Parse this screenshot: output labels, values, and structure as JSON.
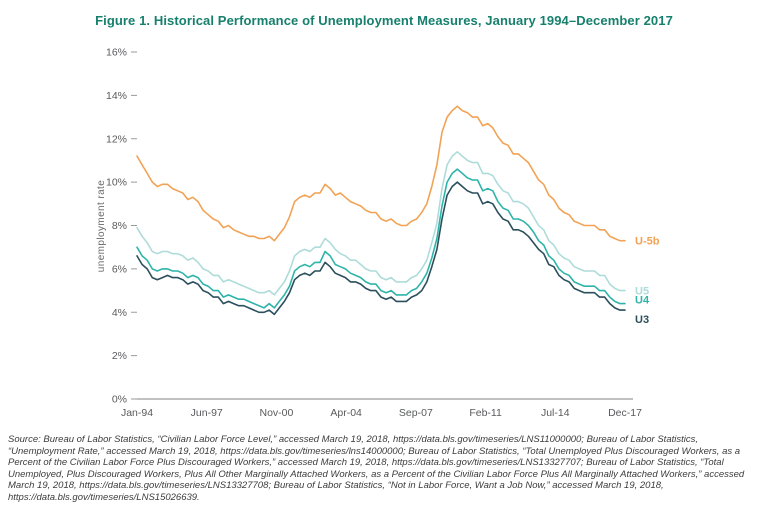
{
  "figure": {
    "title": "Figure 1. Historical Performance of Unemployment Measures, January 1994–December 2017",
    "title_color": "#17806d"
  },
  "chart_data": {
    "type": "line",
    "title": "Figure 1. Historical Performance of Unemployment Measures, January 1994–December 2017",
    "xlabel": "",
    "ylabel": "unemployment rate",
    "ylim": [
      0,
      16
    ],
    "y_ticks": [
      "0%",
      "2%",
      "4%",
      "6%",
      "8%",
      "10%",
      "12%",
      "14%",
      "16%"
    ],
    "x_tick_labels": [
      "Jan-94",
      "Jun-97",
      "Nov-00",
      "Apr-04",
      "Sep-07",
      "Feb-11",
      "Jul-14",
      "Dec-17"
    ],
    "x_range": [
      1994.0,
      2018.0
    ],
    "x_step": 0.25,
    "grid": false,
    "legend_position": "right-end-of-line",
    "axis_color": "#9a9a9a",
    "tick_text_color": "#595a5c",
    "series": [
      {
        "name": "U5",
        "color": "#aedcda",
        "label_dy": 0,
        "values": [
          7.9,
          7.5,
          7.2,
          6.8,
          6.7,
          6.8,
          6.8,
          6.7,
          6.7,
          6.6,
          6.4,
          6.5,
          6.3,
          6.0,
          5.9,
          5.7,
          5.7,
          5.4,
          5.5,
          5.4,
          5.3,
          5.2,
          5.1,
          5.0,
          4.9,
          4.9,
          5.0,
          4.8,
          5.1,
          5.4,
          5.9,
          6.6,
          6.8,
          6.9,
          6.8,
          7.0,
          7.0,
          7.4,
          7.2,
          6.9,
          6.7,
          6.6,
          6.4,
          6.4,
          6.2,
          6.0,
          5.9,
          5.9,
          5.6,
          5.5,
          5.6,
          5.4,
          5.4,
          5.4,
          5.6,
          5.7,
          6.0,
          6.4,
          7.2,
          8.1,
          9.7,
          10.8,
          11.2,
          11.4,
          11.2,
          11.0,
          10.9,
          10.9,
          10.4,
          10.4,
          10.3,
          9.9,
          9.6,
          9.5,
          9.1,
          9.1,
          9.0,
          8.8,
          8.4,
          8.0,
          7.8,
          7.3,
          7.1,
          6.7,
          6.5,
          6.4,
          6.1,
          6.0,
          5.9,
          5.9,
          5.9,
          5.7,
          5.7,
          5.3,
          5.1,
          5.0,
          5.0
        ]
      },
      {
        "name": "U4",
        "color": "#2fb4aa",
        "label_dy": -4,
        "values": [
          7.0,
          6.6,
          6.4,
          6.0,
          5.9,
          6.0,
          6.0,
          5.9,
          5.9,
          5.8,
          5.6,
          5.7,
          5.6,
          5.3,
          5.2,
          5.0,
          5.0,
          4.7,
          4.8,
          4.7,
          4.6,
          4.6,
          4.5,
          4.4,
          4.3,
          4.2,
          4.4,
          4.2,
          4.5,
          4.8,
          5.2,
          5.9,
          6.1,
          6.2,
          6.1,
          6.3,
          6.3,
          6.8,
          6.6,
          6.2,
          6.1,
          6.0,
          5.8,
          5.7,
          5.6,
          5.4,
          5.3,
          5.3,
          5.0,
          4.9,
          5.0,
          4.8,
          4.8,
          4.8,
          5.0,
          5.1,
          5.4,
          5.8,
          6.5,
          7.4,
          8.9,
          10.0,
          10.4,
          10.6,
          10.4,
          10.2,
          10.1,
          10.1,
          9.6,
          9.7,
          9.6,
          9.1,
          8.8,
          8.7,
          8.3,
          8.3,
          8.2,
          8.0,
          7.7,
          7.3,
          7.1,
          6.6,
          6.4,
          6.0,
          5.8,
          5.7,
          5.4,
          5.3,
          5.2,
          5.2,
          5.2,
          5.0,
          5.0,
          4.7,
          4.5,
          4.4,
          4.4
        ]
      },
      {
        "name": "U3",
        "color": "#2b4f5c",
        "label_dy": 9,
        "values": [
          6.6,
          6.2,
          6.0,
          5.6,
          5.5,
          5.6,
          5.7,
          5.6,
          5.6,
          5.5,
          5.3,
          5.4,
          5.3,
          5.0,
          4.9,
          4.7,
          4.7,
          4.4,
          4.5,
          4.4,
          4.3,
          4.3,
          4.2,
          4.1,
          4.0,
          4.0,
          4.1,
          3.9,
          4.2,
          4.5,
          4.9,
          5.5,
          5.7,
          5.8,
          5.7,
          5.9,
          5.9,
          6.3,
          6.1,
          5.8,
          5.7,
          5.6,
          5.4,
          5.4,
          5.3,
          5.1,
          5.0,
          5.0,
          4.7,
          4.6,
          4.7,
          4.5,
          4.5,
          4.5,
          4.7,
          4.8,
          5.0,
          5.4,
          6.1,
          6.9,
          8.3,
          9.4,
          9.8,
          10.0,
          9.8,
          9.6,
          9.5,
          9.5,
          9.0,
          9.1,
          9.0,
          8.6,
          8.3,
          8.2,
          7.8,
          7.8,
          7.7,
          7.5,
          7.2,
          6.9,
          6.7,
          6.2,
          6.1,
          5.7,
          5.5,
          5.4,
          5.1,
          5.0,
          4.9,
          4.9,
          4.9,
          4.7,
          4.7,
          4.4,
          4.2,
          4.1,
          4.1
        ]
      },
      {
        "name": "U-5b",
        "color": "#f2a254",
        "label_dy": 0,
        "values": [
          11.2,
          10.8,
          10.4,
          10.0,
          9.8,
          9.9,
          9.9,
          9.7,
          9.6,
          9.5,
          9.2,
          9.3,
          9.1,
          8.7,
          8.5,
          8.3,
          8.2,
          7.9,
          8.0,
          7.8,
          7.7,
          7.6,
          7.5,
          7.5,
          7.4,
          7.4,
          7.5,
          7.3,
          7.6,
          7.9,
          8.4,
          9.1,
          9.3,
          9.4,
          9.3,
          9.5,
          9.5,
          9.9,
          9.7,
          9.4,
          9.5,
          9.3,
          9.1,
          9.0,
          8.9,
          8.7,
          8.6,
          8.6,
          8.3,
          8.2,
          8.3,
          8.1,
          8.0,
          8.0,
          8.2,
          8.3,
          8.6,
          9.0,
          9.8,
          10.8,
          12.3,
          13.0,
          13.3,
          13.5,
          13.3,
          13.2,
          13.0,
          13.0,
          12.6,
          12.7,
          12.5,
          12.1,
          11.8,
          11.7,
          11.3,
          11.3,
          11.1,
          10.9,
          10.5,
          10.1,
          9.9,
          9.4,
          9.2,
          8.8,
          8.6,
          8.5,
          8.2,
          8.1,
          8.0,
          8.0,
          8.0,
          7.8,
          7.8,
          7.5,
          7.4,
          7.3,
          7.3
        ]
      }
    ]
  },
  "source": {
    "text": "Source: Bureau of Labor Statistics, “Civilian Labor Force Level,” accessed March 19, 2018, https://data.bls.gov/timeseries/LNS11000000; Bureau of Labor Statistics, “Unemployment Rate,” accessed March 19, 2018, https://data.bls.gov/timeseries/lns14000000; Bureau of Labor Statistics, “Total Unemployed Plus Discouraged Workers, as a Percent of the Civilian Labor Force Plus Discouraged Workers,” accessed March 19, 2018, https://data.bls.gov/timeseries/LNS13327707; Bureau of Labor Statistics, “Total Unemployed, Plus Discouraged Workers, Plus All Other Marginally Attached Workers, as a Percent of the Civilian Labor Force Plus All Marginally Attached Workers,” accessed March 19, 2018, https://data.bls.gov/timeseries/LNS13327708; Bureau of Labor Statistics, “Not in Labor Force, Want a Job Now,” accessed March 19, 2018, https://data.bls.gov/timeseries/LNS15026639."
  }
}
